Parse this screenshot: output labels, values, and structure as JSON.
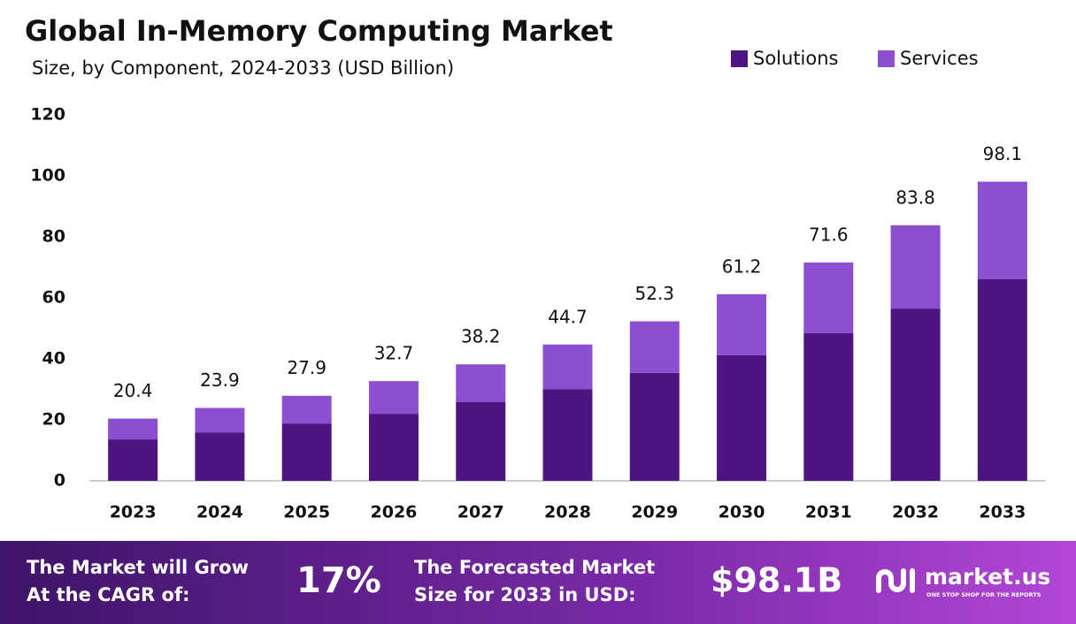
{
  "chart_data": {
    "type": "stacked_bar",
    "title": "Global In-Memory Computing Market",
    "subtitle": "Size, by Component, 2024-2033 (USD Billion)",
    "categories": [
      "2023",
      "2024",
      "2025",
      "2026",
      "2027",
      "2028",
      "2029",
      "2030",
      "2031",
      "2032",
      "2033"
    ],
    "series": [
      {
        "name": "Solutions",
        "color": "#4e1582",
        "values": [
          13.6,
          15.9,
          18.8,
          22.0,
          25.8,
          30.1,
          35.4,
          41.2,
          48.4,
          56.5,
          66.1
        ]
      },
      {
        "name": "Services",
        "color": "#8c4fd1",
        "values": [
          6.8,
          8.0,
          9.1,
          10.7,
          12.4,
          14.6,
          16.9,
          20.0,
          23.2,
          27.3,
          32.0
        ]
      }
    ],
    "totals": [
      20.4,
      23.9,
      27.9,
      32.7,
      38.2,
      44.7,
      52.3,
      61.2,
      71.6,
      83.8,
      98.1
    ],
    "ylim": [
      0,
      120
    ],
    "yticks": [
      0,
      20,
      40,
      60,
      80,
      100,
      120
    ],
    "grid": false,
    "legend": "top-right"
  },
  "footer": {
    "cagr_text": [
      "The Market will Grow",
      "At the CAGR of:"
    ],
    "cagr_value": "17%",
    "forecast_text": [
      "The Forecasted Market",
      "Size for 2033 in USD:"
    ],
    "forecast_value": "$98.1B",
    "brand": "market.us",
    "tagline": "ONE STOP SHOP FOR THE REPORTS"
  }
}
